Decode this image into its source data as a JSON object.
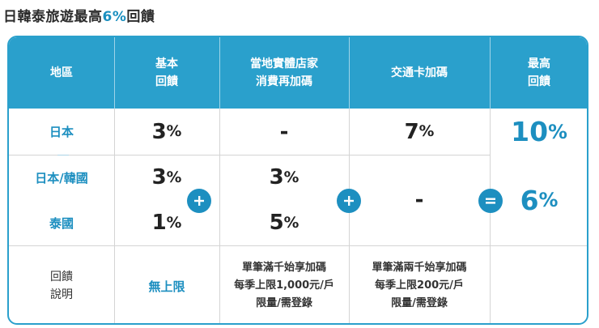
{
  "title": {
    "prefix": "日韓泰旅遊最高",
    "highlight": "6%",
    "suffix": "回饋"
  },
  "headers": {
    "region": "地區",
    "base_1": "基本",
    "base_2": "回饋",
    "local_1": "當地實體店家",
    "local_2": "消費再加碼",
    "transit": "交通卡加碼",
    "max_1": "最高",
    "max_2": "回饋"
  },
  "rows": {
    "japan": {
      "region": "日本",
      "base": "3",
      "local": "-",
      "transit": "7",
      "max": "10"
    },
    "jp_kr": {
      "region": "日本/韓國",
      "base": "3",
      "local": "3"
    },
    "thai": {
      "region": "泰國",
      "base": "1",
      "local": "5"
    },
    "group": {
      "transit": "-",
      "max": "6"
    },
    "notes": {
      "label_1": "回饋",
      "label_2": "說明",
      "base": "無上限",
      "local_1": "單筆滿千始享加碼",
      "local_2": "每季上限1,000元/戶",
      "local_3": "限量/需登錄",
      "transit_1": "單筆滿兩千始享加碼",
      "transit_2": "每季上限200元/戶",
      "transit_3": "限量/需登錄"
    }
  },
  "percent": "%",
  "operators": {
    "plus": "+",
    "equals": "="
  },
  "colors": {
    "accent": "#2aa0cc",
    "accent_text": "#1d8fc0",
    "header_text": "#ffffff"
  }
}
